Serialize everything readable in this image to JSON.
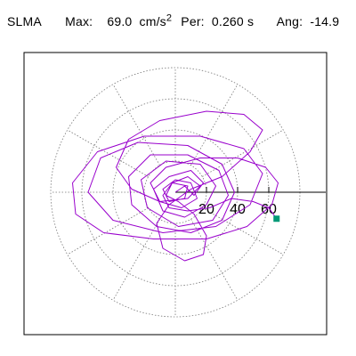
{
  "header": {
    "station": "SLMA",
    "max_label": "Max:",
    "max_value": "69.0",
    "max_unit": "cm/s",
    "max_unit_exp": "2",
    "per_label": "Per:",
    "per_value": "0.260 s",
    "ang_label": "Ang:",
    "ang_value": "-14.9"
  },
  "chart_data": {
    "type": "polar-particle-motion",
    "units": "cm/s^2",
    "r_ticks": [
      20,
      40,
      60
    ],
    "r_tick_labels": [
      "20",
      "40",
      "60"
    ],
    "rmax": 80,
    "grid": true,
    "grid_angle_step_deg": 30,
    "max_amplitude": 69.0,
    "period_s": 0.26,
    "angle_deg": -14.9,
    "end_point": [
      65,
      -17
    ],
    "trace_color": "#9900cc",
    "marker_color": "#009977",
    "grid_color": "#777777",
    "trajectory": [
      [
        0,
        0
      ],
      [
        6,
        4
      ],
      [
        12,
        -2
      ],
      [
        18,
        6
      ],
      [
        10,
        14
      ],
      [
        -4,
        10
      ],
      [
        -14,
        2
      ],
      [
        -8,
        -12
      ],
      [
        6,
        -16
      ],
      [
        20,
        -8
      ],
      [
        26,
        4
      ],
      [
        16,
        18
      ],
      [
        -6,
        20
      ],
      [
        -22,
        8
      ],
      [
        -18,
        -10
      ],
      [
        2,
        -22
      ],
      [
        24,
        -18
      ],
      [
        34,
        -2
      ],
      [
        28,
        14
      ],
      [
        8,
        24
      ],
      [
        -16,
        24
      ],
      [
        -30,
        10
      ],
      [
        -28,
        -8
      ],
      [
        -12,
        -22
      ],
      [
        10,
        -26
      ],
      [
        30,
        -18
      ],
      [
        38,
        0
      ],
      [
        30,
        18
      ],
      [
        8,
        30
      ],
      [
        -24,
        32
      ],
      [
        -48,
        22
      ],
      [
        -56,
        0
      ],
      [
        -40,
        -18
      ],
      [
        -8,
        -26
      ],
      [
        26,
        -22
      ],
      [
        48,
        -8
      ],
      [
        56,
        12
      ],
      [
        44,
        28
      ],
      [
        16,
        36
      ],
      [
        -20,
        36
      ],
      [
        -50,
        26
      ],
      [
        -66,
        6
      ],
      [
        -64,
        -14
      ],
      [
        -46,
        -26
      ],
      [
        -14,
        -30
      ],
      [
        20,
        -30
      ],
      [
        46,
        -22
      ],
      [
        62,
        -8
      ],
      [
        66,
        6
      ],
      [
        58,
        16
      ],
      [
        40,
        22
      ],
      [
        16,
        22
      ],
      [
        -6,
        16
      ],
      [
        -16,
        6
      ],
      [
        -10,
        -6
      ],
      [
        4,
        -10
      ],
      [
        14,
        -4
      ],
      [
        10,
        6
      ],
      [
        0,
        8
      ],
      [
        -8,
        2
      ],
      [
        -4,
        -6
      ],
      [
        6,
        -4
      ],
      [
        8,
        4
      ],
      [
        -2,
        6
      ],
      [
        -6,
        -2
      ],
      [
        2,
        -6
      ],
      [
        12,
        -14
      ],
      [
        20,
        -28
      ],
      [
        18,
        -40
      ],
      [
        6,
        -44
      ],
      [
        -8,
        -36
      ],
      [
        -12,
        -20
      ],
      [
        -4,
        -8
      ],
      [
        10,
        2
      ],
      [
        30,
        10
      ],
      [
        48,
        26
      ],
      [
        56,
        40
      ],
      [
        44,
        50
      ],
      [
        20,
        52
      ],
      [
        -10,
        46
      ],
      [
        -30,
        34
      ],
      [
        -38,
        16
      ],
      [
        -28,
        2
      ],
      [
        -10,
        -6
      ],
      [
        8,
        -4
      ],
      [
        16,
        4
      ],
      [
        8,
        10
      ],
      [
        -2,
        6
      ],
      [
        -8,
        -2
      ],
      [
        -4,
        -10
      ],
      [
        8,
        -12
      ],
      [
        22,
        -10
      ],
      [
        36,
        -4
      ],
      [
        50,
        -6
      ],
      [
        60,
        -10
      ],
      [
        65,
        -17
      ]
    ]
  }
}
